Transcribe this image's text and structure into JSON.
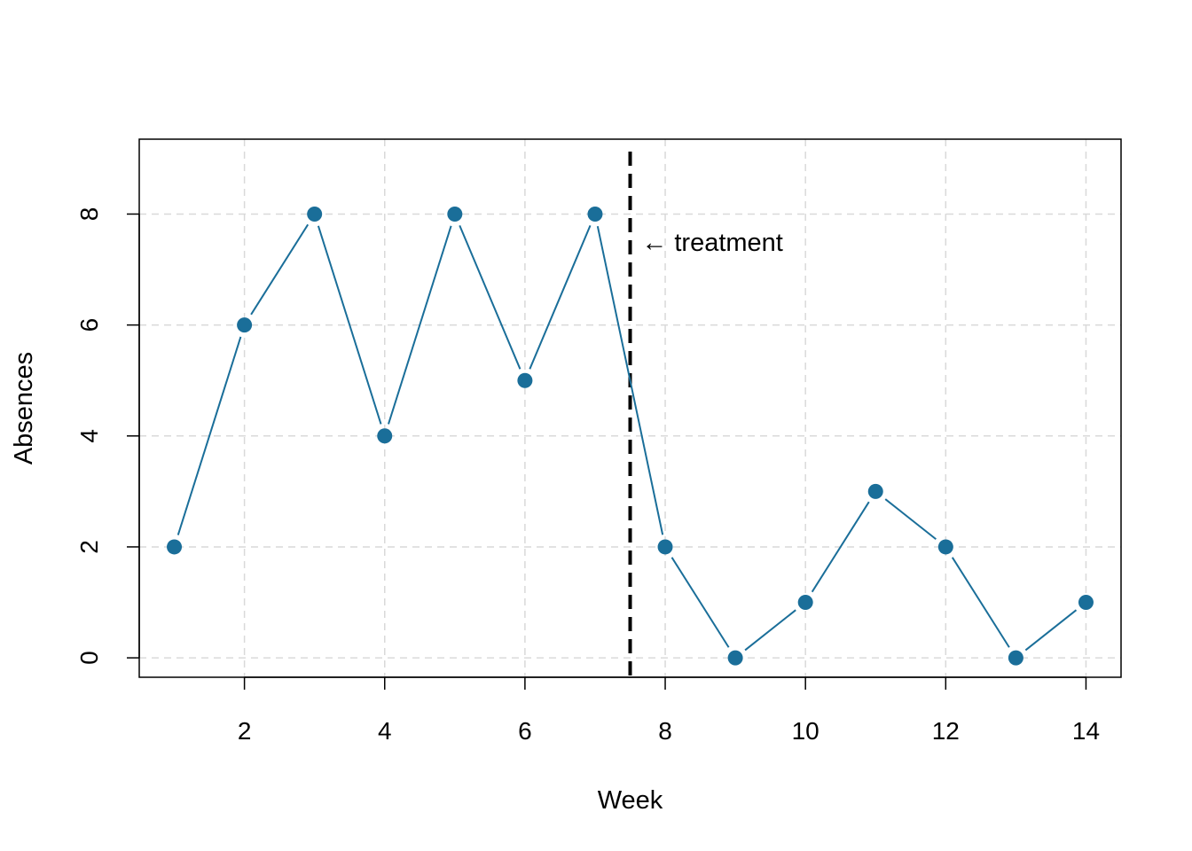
{
  "chart_data": {
    "type": "line",
    "title": "",
    "xlabel": "Week",
    "ylabel": "Absences",
    "xlim": [
      0.5,
      14.5
    ],
    "ylim": [
      -0.35,
      9.35
    ],
    "x_ticks": [
      2,
      4,
      6,
      8,
      10,
      12,
      14
    ],
    "y_ticks": [
      0,
      2,
      4,
      6,
      8
    ],
    "grid": true,
    "series": [
      {
        "x": [
          1,
          2,
          3,
          4,
          5,
          6,
          7,
          8,
          9,
          10,
          11,
          12,
          13,
          14
        ],
        "values": [
          2,
          6,
          8,
          4,
          8,
          5,
          8,
          2,
          0,
          1,
          3,
          2,
          0,
          1
        ],
        "color": "#1a6e99",
        "marker": "filled-circle"
      }
    ],
    "vline": {
      "x": 7.5,
      "style": "dashed",
      "color": "#000000"
    },
    "annotations": [
      {
        "text": "← treatment",
        "x": 7.7,
        "y": 7.5
      }
    ]
  }
}
